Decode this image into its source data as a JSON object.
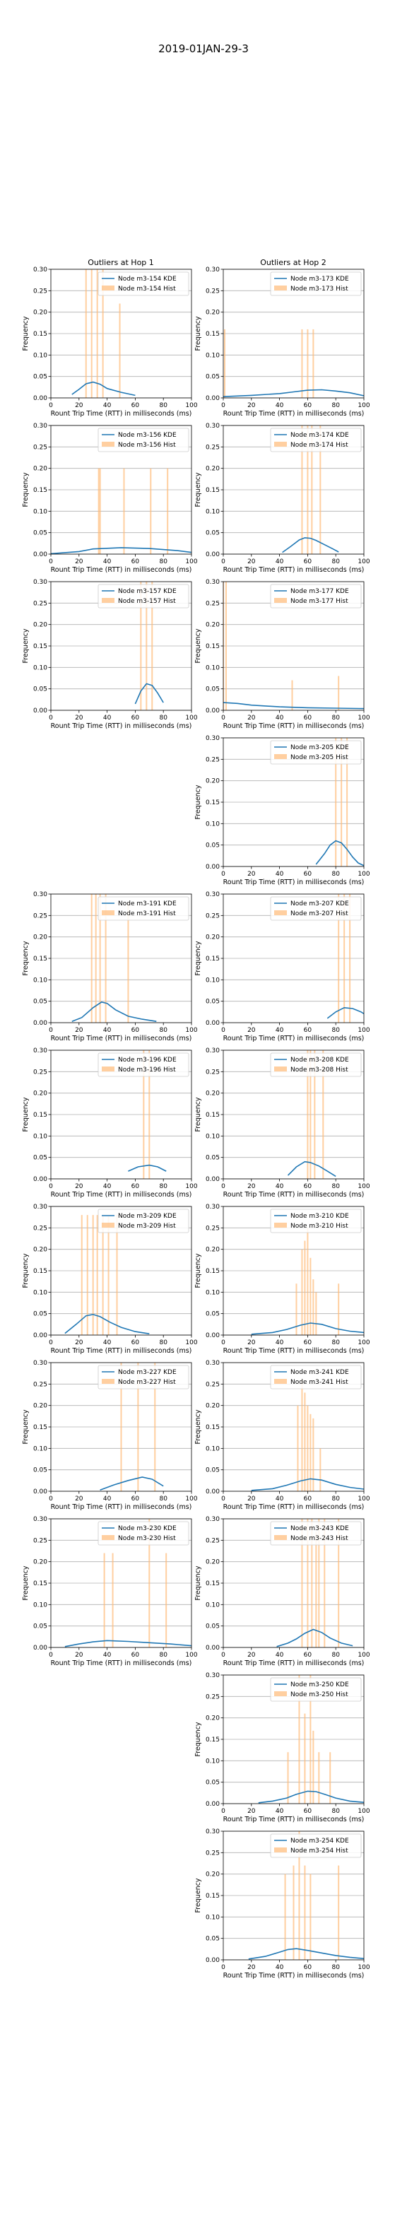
{
  "figure": {
    "suptitle": "2019-01JAN-29-3",
    "column_titles": [
      "Outliers at Hop 1",
      "Outliers at Hop 2"
    ]
  },
  "colors": {
    "kde": "#1f77b4",
    "hist": "#ffbb78",
    "grid": "#b0b0b0",
    "axes": "#000000"
  },
  "axis_template": {
    "xlabel": "Rount Trip Time (RTT) in milliseconds (ms)",
    "ylabel": "Frequency",
    "xlim": [
      0,
      100
    ],
    "ylim": [
      0,
      0.3
    ],
    "xticks": [
      0,
      20,
      40,
      60,
      80,
      100
    ],
    "yticks": [
      0.0,
      0.05,
      0.1,
      0.15,
      0.2,
      0.25,
      0.3
    ],
    "grid": "y-axis, light grey",
    "legend_position": "top-right"
  },
  "chart_data": [
    {
      "type": "area",
      "row": 0,
      "col": 0,
      "node": "m3-154",
      "legend": [
        "Node m3-154 KDE",
        "Node m3-154 Hist"
      ],
      "kde": {
        "x": [
          15,
          20,
          25,
          30,
          35,
          40,
          50,
          60
        ],
        "y": [
          0.008,
          0.02,
          0.033,
          0.037,
          0.032,
          0.022,
          0.013,
          0.006
        ]
      },
      "hist": [
        [
          25,
          0.3
        ],
        [
          29,
          0.3
        ],
        [
          33,
          0.3
        ],
        [
          37,
          0.3
        ],
        [
          49,
          0.22
        ]
      ]
    },
    {
      "type": "area",
      "row": 0,
      "col": 1,
      "node": "m3-173",
      "legend": [
        "Node m3-173 KDE",
        "Node m3-173 Hist"
      ],
      "kde": {
        "x": [
          0,
          20,
          40,
          50,
          60,
          70,
          80,
          90,
          100
        ],
        "y": [
          0.003,
          0.006,
          0.01,
          0.014,
          0.018,
          0.019,
          0.016,
          0.012,
          0.005
        ]
      },
      "hist": [
        [
          1,
          0.16
        ],
        [
          56,
          0.16
        ],
        [
          60,
          0.16
        ],
        [
          64,
          0.16
        ]
      ]
    },
    {
      "type": "area",
      "row": 1,
      "col": 0,
      "node": "m3-156",
      "legend": [
        "Node m3-156 KDE",
        "Node m3-156 Hist"
      ],
      "kde": {
        "x": [
          0,
          20,
          30,
          50,
          70,
          90,
          100
        ],
        "y": [
          0.001,
          0.006,
          0.012,
          0.015,
          0.013,
          0.008,
          0.004
        ]
      },
      "hist": [
        [
          34,
          0.2
        ],
        [
          35,
          0.2
        ],
        [
          52,
          0.2
        ],
        [
          71,
          0.2
        ],
        [
          83,
          0.2
        ]
      ]
    },
    {
      "type": "area",
      "row": 1,
      "col": 1,
      "node": "m3-174",
      "legend": [
        "Node m3-174 KDE",
        "Node m3-174 Hist"
      ],
      "kde": {
        "x": [
          42,
          48,
          54,
          58,
          62,
          66,
          72,
          78,
          82
        ],
        "y": [
          0.004,
          0.018,
          0.033,
          0.038,
          0.037,
          0.032,
          0.022,
          0.012,
          0.005
        ]
      },
      "hist": [
        [
          56,
          0.3
        ],
        [
          60,
          0.3
        ],
        [
          63,
          0.3
        ],
        [
          69,
          0.3
        ]
      ]
    },
    {
      "type": "area",
      "row": 2,
      "col": 0,
      "node": "m3-157",
      "legend": [
        "Node m3-157 KDE",
        "Node m3-157 Hist"
      ],
      "kde": {
        "x": [
          60,
          64,
          68,
          72,
          76,
          80
        ],
        "y": [
          0.015,
          0.045,
          0.062,
          0.058,
          0.04,
          0.018
        ]
      },
      "hist": [
        [
          64,
          0.3
        ],
        [
          68,
          0.3
        ],
        [
          72,
          0.3
        ]
      ]
    },
    {
      "type": "area",
      "row": 2,
      "col": 1,
      "node": "m3-177",
      "legend": [
        "Node m3-177 KDE",
        "Node m3-177 Hist"
      ],
      "kde": {
        "x": [
          0,
          10,
          20,
          40,
          60,
          80,
          100
        ],
        "y": [
          0.018,
          0.016,
          0.012,
          0.008,
          0.006,
          0.005,
          0.004
        ]
      },
      "hist": [
        [
          0,
          0.3
        ],
        [
          2,
          0.3
        ],
        [
          49,
          0.07
        ],
        [
          82,
          0.08
        ]
      ]
    },
    {
      "type": "area",
      "row": 3,
      "col": 1,
      "node": "m3-205",
      "legend": [
        "Node m3-205 KDE",
        "Node m3-205 Hist"
      ],
      "kde": {
        "x": [
          66,
          72,
          76,
          80,
          84,
          88,
          92,
          96,
          100
        ],
        "y": [
          0.005,
          0.03,
          0.05,
          0.06,
          0.055,
          0.04,
          0.022,
          0.008,
          0.002
        ]
      },
      "hist": [
        [
          80,
          0.3
        ],
        [
          84,
          0.3
        ],
        [
          88,
          0.3
        ]
      ]
    },
    {
      "type": "area",
      "row": 4,
      "col": 0,
      "node": "m3-191",
      "legend": [
        "Node m3-191 KDE",
        "Node m3-191 Hist"
      ],
      "kde": {
        "x": [
          15,
          22,
          30,
          36,
          40,
          46,
          55,
          65,
          75
        ],
        "y": [
          0.003,
          0.012,
          0.035,
          0.048,
          0.045,
          0.03,
          0.015,
          0.008,
          0.003
        ]
      },
      "hist": [
        [
          29,
          0.3
        ],
        [
          32,
          0.3
        ],
        [
          35,
          0.3
        ],
        [
          39,
          0.3
        ],
        [
          55,
          0.28
        ]
      ]
    },
    {
      "type": "area",
      "row": 4,
      "col": 1,
      "node": "m3-207",
      "legend": [
        "Node m3-207 KDE",
        "Node m3-207 Hist"
      ],
      "kde": {
        "x": [
          74,
          80,
          86,
          92,
          98,
          100
        ],
        "y": [
          0.01,
          0.025,
          0.035,
          0.033,
          0.025,
          0.021
        ]
      },
      "hist": [
        [
          82,
          0.3
        ],
        [
          86,
          0.3
        ],
        [
          90,
          0.3
        ]
      ]
    },
    {
      "type": "area",
      "row": 5,
      "col": 0,
      "node": "m3-196",
      "legend": [
        "Node m3-196 KDE",
        "Node m3-196 Hist"
      ],
      "kde": {
        "x": [
          55,
          62,
          70,
          76,
          82
        ],
        "y": [
          0.018,
          0.028,
          0.032,
          0.028,
          0.018
        ]
      },
      "hist": [
        [
          66,
          0.3
        ],
        [
          70,
          0.3
        ]
      ]
    },
    {
      "type": "area",
      "row": 5,
      "col": 1,
      "node": "m3-208",
      "legend": [
        "Node m3-208 KDE",
        "Node m3-208 Hist"
      ],
      "kde": {
        "x": [
          46,
          52,
          58,
          62,
          68,
          74,
          80
        ],
        "y": [
          0.008,
          0.028,
          0.04,
          0.038,
          0.03,
          0.018,
          0.006
        ]
      },
      "hist": [
        [
          60,
          0.3
        ],
        [
          62,
          0.3
        ],
        [
          65,
          0.3
        ],
        [
          71,
          0.3
        ]
      ]
    },
    {
      "type": "area",
      "row": 6,
      "col": 0,
      "node": "m3-209",
      "legend": [
        "Node m3-209 KDE",
        "Node m3-209 Hist"
      ],
      "kde": {
        "x": [
          10,
          18,
          25,
          30,
          35,
          42,
          50,
          60,
          70
        ],
        "y": [
          0.004,
          0.025,
          0.045,
          0.048,
          0.043,
          0.03,
          0.018,
          0.008,
          0.003
        ]
      },
      "hist": [
        [
          22,
          0.28
        ],
        [
          26,
          0.28
        ],
        [
          30,
          0.28
        ],
        [
          33,
          0.28
        ],
        [
          37,
          0.28
        ],
        [
          41,
          0.28
        ],
        [
          47,
          0.28
        ]
      ]
    },
    {
      "type": "area",
      "row": 6,
      "col": 1,
      "node": "m3-210",
      "legend": [
        "Node m3-210 KDE",
        "Node m3-210 Hist"
      ],
      "kde": {
        "x": [
          20,
          35,
          45,
          55,
          62,
          70,
          80,
          90,
          100
        ],
        "y": [
          0.002,
          0.006,
          0.013,
          0.023,
          0.028,
          0.025,
          0.015,
          0.009,
          0.006
        ]
      },
      "hist": [
        [
          52,
          0.12
        ],
        [
          56,
          0.2
        ],
        [
          58,
          0.22
        ],
        [
          60,
          0.25
        ],
        [
          62,
          0.18
        ],
        [
          64,
          0.13
        ],
        [
          66,
          0.1
        ],
        [
          82,
          0.12
        ]
      ]
    },
    {
      "type": "area",
      "row": 7,
      "col": 0,
      "node": "m3-227",
      "legend": [
        "Node m3-227 KDE",
        "Node m3-227 Hist"
      ],
      "kde": {
        "x": [
          35,
          45,
          55,
          65,
          72,
          80
        ],
        "y": [
          0.003,
          0.015,
          0.025,
          0.033,
          0.028,
          0.012
        ]
      },
      "hist": [
        [
          50,
          0.3
        ],
        [
          62,
          0.3
        ],
        [
          74,
          0.3
        ]
      ]
    },
    {
      "type": "area",
      "row": 7,
      "col": 1,
      "node": "m3-241",
      "legend": [
        "Node m3-241 KDE",
        "Node m3-241 Hist"
      ],
      "kde": {
        "x": [
          20,
          35,
          45,
          55,
          62,
          70,
          80,
          90,
          100
        ],
        "y": [
          0.002,
          0.006,
          0.014,
          0.024,
          0.029,
          0.026,
          0.016,
          0.009,
          0.005
        ]
      },
      "hist": [
        [
          53,
          0.2
        ],
        [
          56,
          0.26
        ],
        [
          58,
          0.23
        ],
        [
          60,
          0.2
        ],
        [
          62,
          0.18
        ],
        [
          64,
          0.17
        ],
        [
          69,
          0.1
        ]
      ]
    },
    {
      "type": "area",
      "row": 8,
      "col": 0,
      "node": "m3-230",
      "legend": [
        "Node m3-230 KDE",
        "Node m3-230 Hist"
      ],
      "kde": {
        "x": [
          10,
          20,
          30,
          40,
          55,
          70,
          85,
          100
        ],
        "y": [
          0.002,
          0.008,
          0.013,
          0.016,
          0.014,
          0.011,
          0.008,
          0.004
        ]
      },
      "hist": [
        [
          38,
          0.22
        ],
        [
          44,
          0.22
        ],
        [
          70,
          0.3
        ],
        [
          82,
          0.22
        ]
      ]
    },
    {
      "type": "area",
      "row": 8,
      "col": 1,
      "node": "m3-243",
      "legend": [
        "Node m3-243 KDE",
        "Node m3-243 Hist"
      ],
      "kde": {
        "x": [
          38,
          46,
          52,
          58,
          64,
          70,
          76,
          84,
          92
        ],
        "y": [
          0.002,
          0.01,
          0.02,
          0.033,
          0.042,
          0.035,
          0.022,
          0.01,
          0.004
        ]
      },
      "hist": [
        [
          56,
          0.3
        ],
        [
          60,
          0.3
        ],
        [
          63,
          0.3
        ],
        [
          66,
          0.27
        ],
        [
          68,
          0.3
        ],
        [
          72,
          0.3
        ],
        [
          82,
          0.3
        ]
      ]
    },
    {
      "type": "area",
      "row": 9,
      "col": 1,
      "node": "m3-250",
      "legend": [
        "Node m3-250 KDE",
        "Node m3-250 Hist"
      ],
      "kde": {
        "x": [
          25,
          35,
          45,
          52,
          60,
          66,
          72,
          80,
          90,
          100
        ],
        "y": [
          0.002,
          0.006,
          0.013,
          0.022,
          0.029,
          0.028,
          0.022,
          0.013,
          0.006,
          0.003
        ]
      },
      "hist": [
        [
          46,
          0.12
        ],
        [
          54,
          0.3
        ],
        [
          58,
          0.21
        ],
        [
          62,
          0.3
        ],
        [
          64,
          0.17
        ],
        [
          68,
          0.12
        ],
        [
          76,
          0.12
        ]
      ]
    },
    {
      "type": "area",
      "row": 10,
      "col": 1,
      "node": "m3-254",
      "legend": [
        "Node m3-254 KDE",
        "Node m3-254 Hist"
      ],
      "kde": {
        "x": [
          18,
          30,
          40,
          46,
          52,
          60,
          70,
          80,
          90,
          100
        ],
        "y": [
          0.002,
          0.008,
          0.018,
          0.024,
          0.026,
          0.022,
          0.016,
          0.01,
          0.006,
          0.003
        ]
      },
      "hist": [
        [
          44,
          0.2
        ],
        [
          50,
          0.22
        ],
        [
          54,
          0.3
        ],
        [
          58,
          0.22
        ],
        [
          62,
          0.2
        ],
        [
          82,
          0.22
        ]
      ]
    }
  ]
}
